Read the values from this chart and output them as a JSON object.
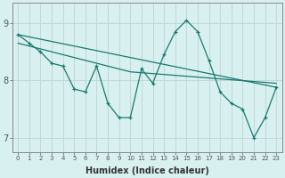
{
  "xlabel": "Humidex (Indice chaleur)",
  "bg_color": "#d8f0f0",
  "grid_color": "#c0d8d8",
  "line_color": "#1a7a6e",
  "xlim": [
    -0.5,
    23.5
  ],
  "ylim": [
    6.75,
    9.35
  ],
  "yticks": [
    7,
    8,
    9
  ],
  "xticks": [
    0,
    1,
    2,
    3,
    4,
    5,
    6,
    7,
    8,
    9,
    10,
    11,
    12,
    13,
    14,
    15,
    16,
    17,
    18,
    19,
    20,
    21,
    22,
    23
  ],
  "x": [
    0,
    1,
    2,
    3,
    4,
    5,
    6,
    7,
    8,
    9,
    10,
    11,
    12,
    13,
    14,
    15,
    16,
    17,
    18,
    19,
    20,
    21,
    22,
    23
  ],
  "line_main": [
    8.8,
    8.65,
    8.5,
    8.3,
    8.25,
    7.85,
    7.8,
    8.25,
    7.6,
    7.35,
    7.35,
    8.2,
    7.95,
    8.45,
    8.85,
    9.05,
    8.85,
    8.35,
    7.8,
    7.6,
    7.5,
    7.0,
    7.35,
    7.88
  ],
  "trend1_x": [
    0,
    23
  ],
  "trend1_y": [
    8.8,
    7.88
  ],
  "trend2_x": [
    0,
    10,
    23
  ],
  "trend2_y": [
    8.65,
    8.15,
    7.95
  ]
}
